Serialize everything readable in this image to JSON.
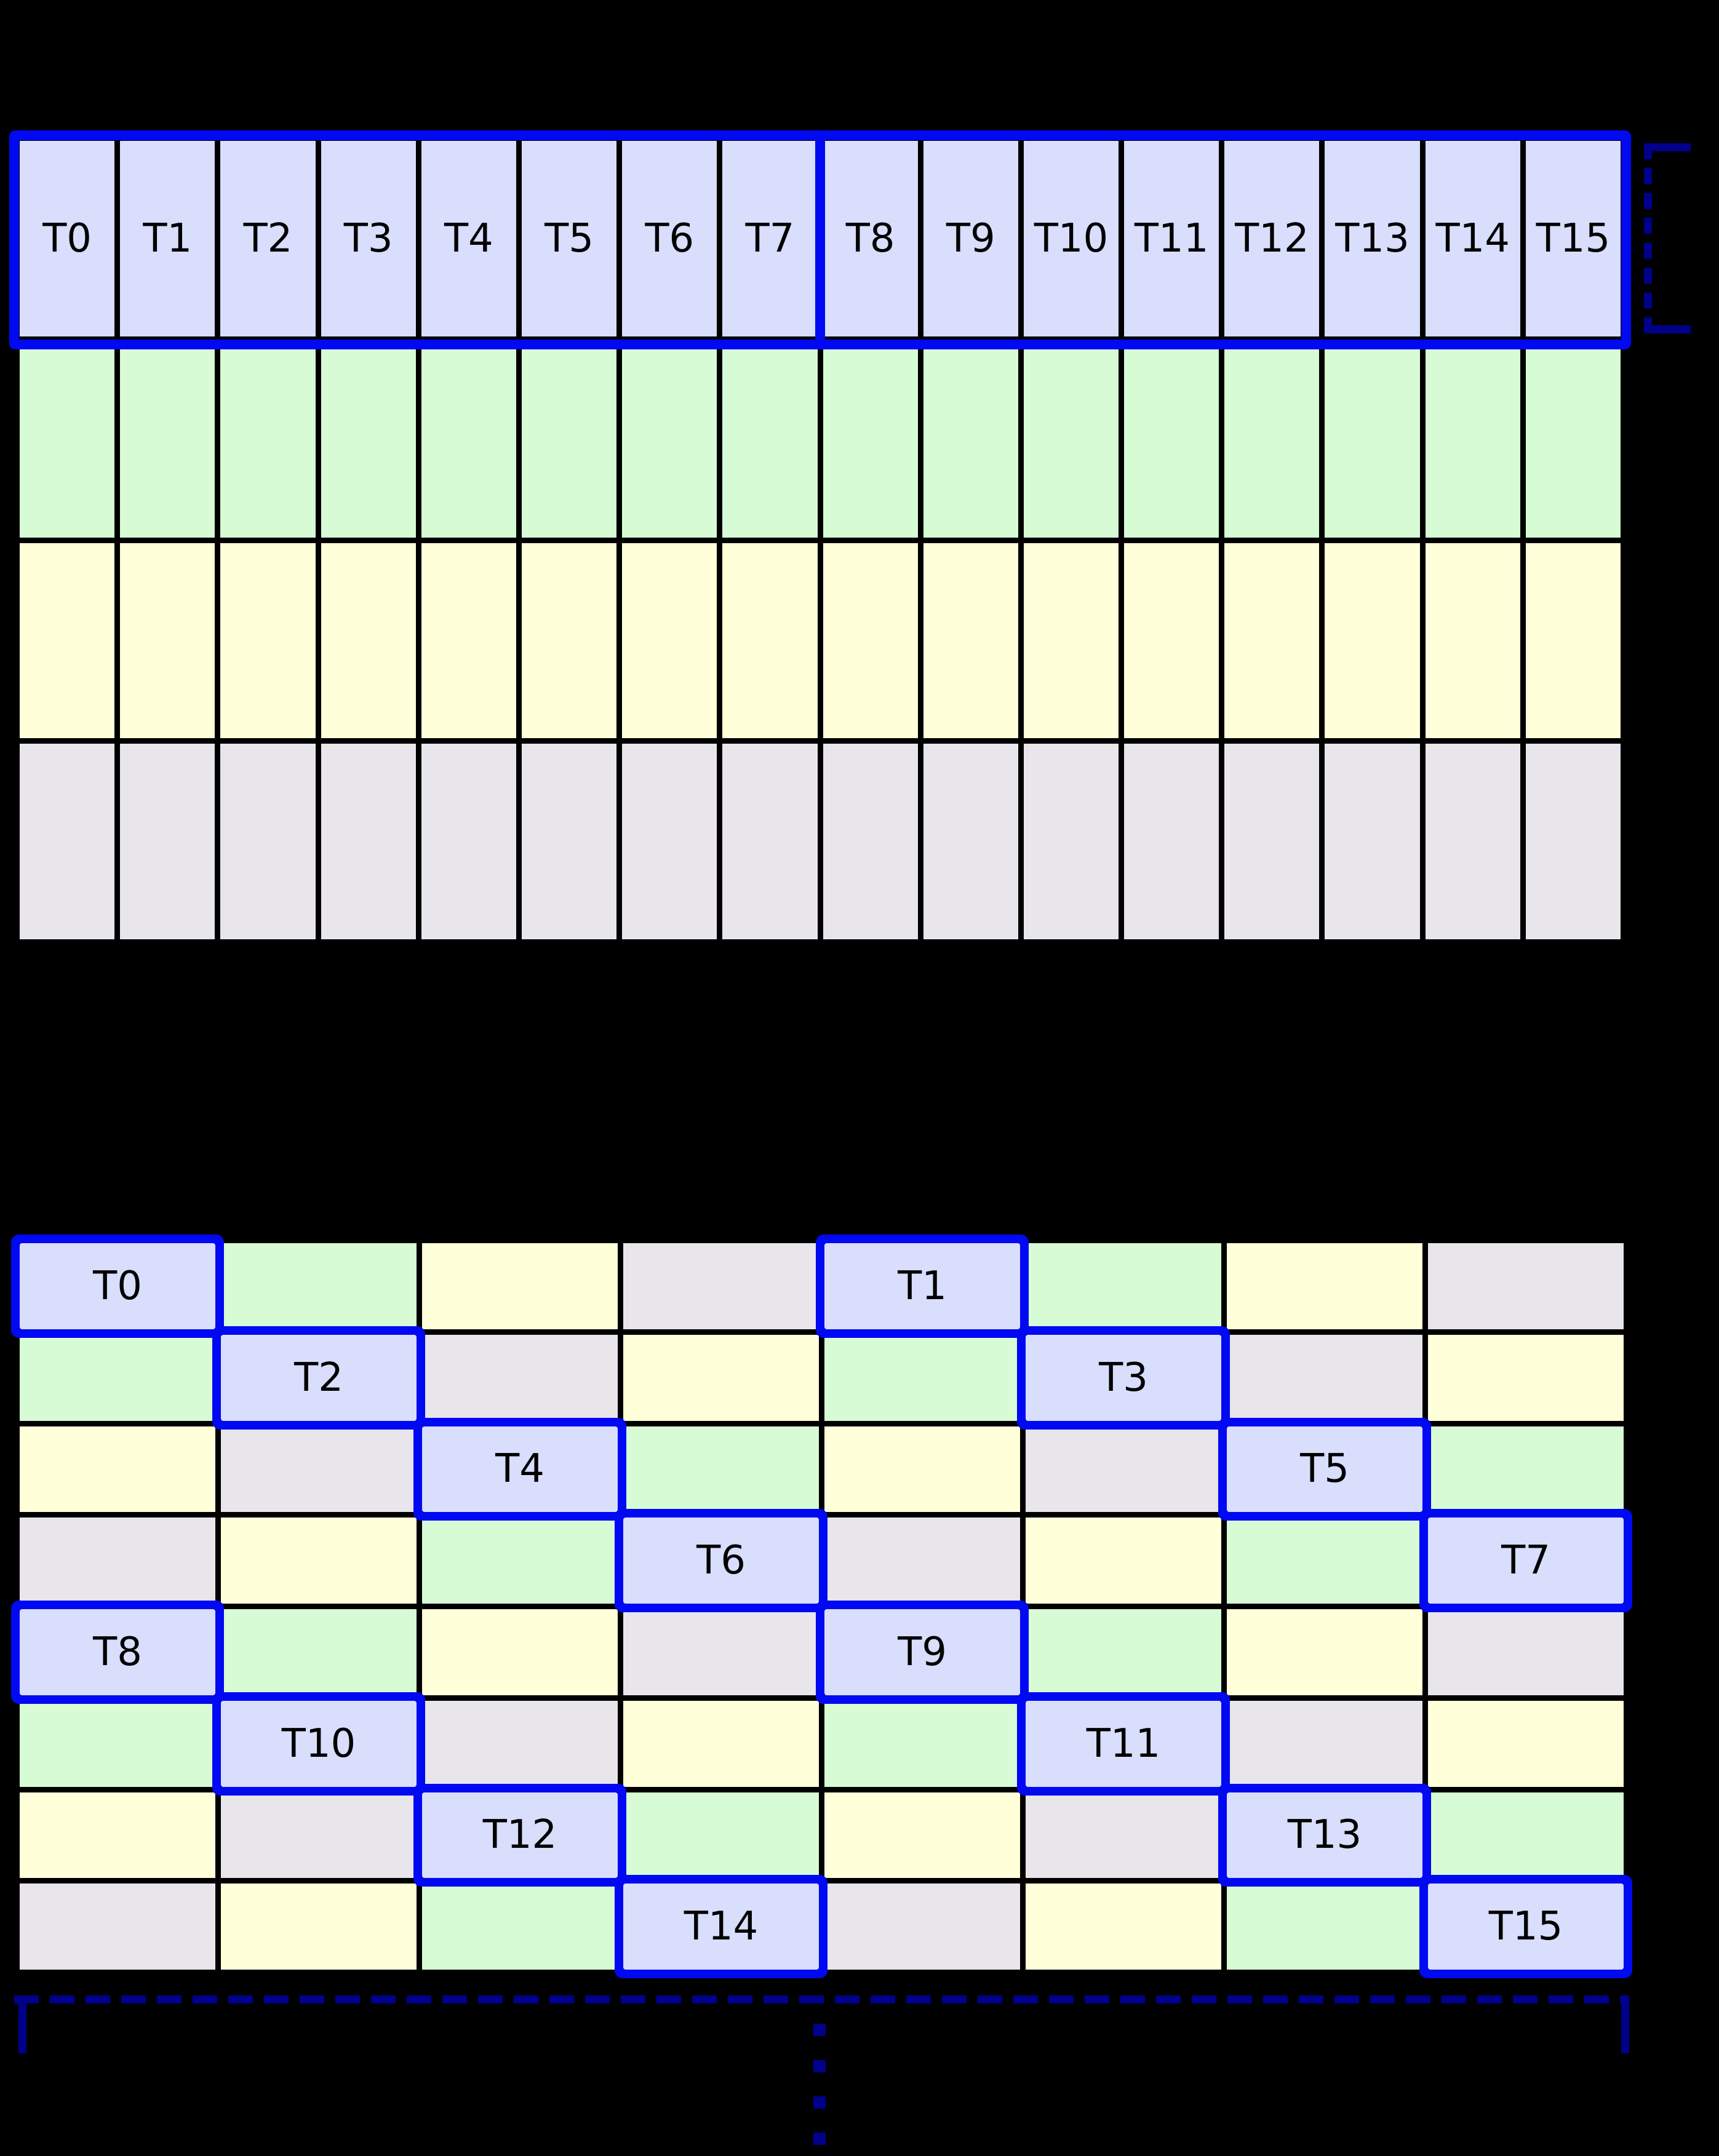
{
  "palette": {
    "background": "#000000",
    "grid_line": "#000000",
    "cell_blue": "#d8defb",
    "cell_green": "#d7fcd5",
    "cell_yellow": "#ffffd9",
    "cell_gray": "#e8e6ea",
    "highlight_border": "#0009f2",
    "bracket_navy": "#00008b",
    "label_color": "#000000"
  },
  "top_grid": {
    "rows": 4,
    "columns": 16,
    "thread_labels": [
      "T0",
      "T1",
      "T2",
      "T3",
      "T4",
      "T5",
      "T6",
      "T7",
      "T8",
      "T9",
      "T10",
      "T11",
      "T12",
      "T13",
      "T14",
      "T15"
    ],
    "row_colors": [
      "B",
      "G",
      "Y",
      "X"
    ]
  },
  "bottom_grid": {
    "rows": 8,
    "columns": 8,
    "cells": [
      [
        "B:T0",
        "G",
        "Y",
        "X",
        "B:T1",
        "G",
        "Y",
        "X"
      ],
      [
        "G",
        "B:T2",
        "X",
        "Y",
        "G",
        "B:T3",
        "X",
        "Y"
      ],
      [
        "Y",
        "X",
        "B:T4",
        "G",
        "Y",
        "X",
        "B:T5",
        "G"
      ],
      [
        "X",
        "Y",
        "G",
        "B:T6",
        "X",
        "Y",
        "G",
        "B:T7"
      ],
      [
        "B:T8",
        "G",
        "Y",
        "X",
        "B:T9",
        "G",
        "Y",
        "X"
      ],
      [
        "G",
        "B:T10",
        "X",
        "Y",
        "G",
        "B:T11",
        "X",
        "Y"
      ],
      [
        "Y",
        "X",
        "B:T12",
        "G",
        "Y",
        "X",
        "B:T13",
        "G"
      ],
      [
        "X",
        "Y",
        "G",
        "B:T14",
        "X",
        "Y",
        "G",
        "B:T15"
      ]
    ]
  }
}
